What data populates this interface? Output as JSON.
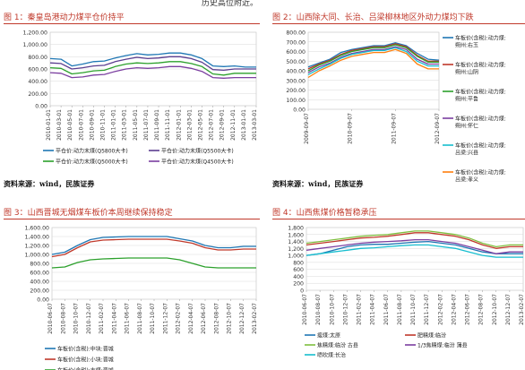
{
  "header_fragment": "历史高位附近。",
  "sources": {
    "left": "资料来源：wind，民族证券",
    "right": "资料来源：wind，民族证券"
  },
  "colors": {
    "title": "#c0392b",
    "rule": "#c0392b"
  },
  "chart_data": [
    {
      "type": "line",
      "title": "图 1：秦皇岛港动力煤平仓价持平",
      "x_tick_labels": [
        "2010-01-01",
        "2010-03-01",
        "2010-05-01",
        "2010-07-01",
        "2010-09-01",
        "2010-11-01",
        "2011-01-01",
        "2011-03-01",
        "2011-05-01",
        "2011-07-01",
        "2011-09-01",
        "2011-11-01",
        "2012-01-01",
        "2012-03-01",
        "2012-05-01",
        "2012-07-01",
        "2012-09-01",
        "2012-11-01",
        "2013-01-01",
        "2013-03-01"
      ],
      "y_tick_labels": [
        "0.00",
        "200.00",
        "400.00",
        "600.00",
        "800.00",
        "1,000.00",
        "1,200.00"
      ],
      "ylim": [
        0,
        1200
      ],
      "legend": "bottom",
      "series": [
        {
          "name": "平仓价:动力末煤(Q5800大卡)",
          "color": "#1f77b4",
          "values": [
            770,
            760,
            650,
            680,
            720,
            730,
            780,
            820,
            850,
            830,
            840,
            860,
            860,
            830,
            770,
            650,
            640,
            650,
            630,
            630
          ]
        },
        {
          "name": "平仓价:动力末煤(Q5500大卡)",
          "color": "#5b3d8f",
          "values": [
            700,
            690,
            600,
            620,
            650,
            660,
            720,
            760,
            790,
            770,
            780,
            800,
            800,
            770,
            710,
            590,
            580,
            600,
            600,
            600
          ]
        },
        {
          "name": "平仓价:动力末煤(Q5000大卡)",
          "color": "#2ca02c",
          "values": [
            620,
            610,
            520,
            540,
            570,
            580,
            640,
            680,
            700,
            690,
            700,
            720,
            720,
            690,
            640,
            520,
            500,
            530,
            530,
            530
          ]
        },
        {
          "name": "平仓价:动力末煤(Q4500大卡)",
          "color": "#7b3fa0",
          "values": [
            540,
            530,
            460,
            470,
            500,
            510,
            560,
            600,
            620,
            610,
            620,
            640,
            640,
            610,
            560,
            460,
            450,
            460,
            460,
            460
          ]
        }
      ]
    },
    {
      "type": "line",
      "title": "图 2：山西除大同、长治、吕梁柳林地区外动力煤均下跌",
      "x_tick_labels": [
        "2009-09-07",
        "2010-09-07",
        "2011-09-07",
        "2012-09-07"
      ],
      "y_tick_labels": [
        "0.00",
        "100.00",
        "200.00",
        "300.00",
        "400.00",
        "500.00",
        "600.00",
        "700.00",
        "800.00"
      ],
      "ylim": [
        0,
        800
      ],
      "legend": "right",
      "series": [
        {
          "name": "车板价(含税):动力煤:朔州:右玉",
          "color": "#1f77b4",
          "values": [
            440,
            480,
            520,
            590,
            620,
            640,
            660,
            660,
            690,
            660,
            580,
            520,
            510
          ]
        },
        {
          "name": "车板价(含税):动力煤:朔州:山阴",
          "color": "#c0392b",
          "values": [
            420,
            470,
            510,
            570,
            610,
            630,
            650,
            650,
            680,
            650,
            560,
            500,
            500
          ]
        },
        {
          "name": "车板价(含税):动力煤:朔州:平鲁",
          "color": "#2ca02c",
          "values": [
            400,
            460,
            500,
            560,
            600,
            620,
            640,
            640,
            670,
            640,
            550,
            490,
            490
          ]
        },
        {
          "name": "车板价(含税):动力煤:朔州:怀仁",
          "color": "#7b3fa0",
          "values": [
            380,
            440,
            480,
            540,
            580,
            600,
            620,
            620,
            650,
            620,
            520,
            470,
            470
          ]
        },
        {
          "name": "车板价(含税):动力煤:吕梁:兴县",
          "color": "#17becf",
          "values": [
            360,
            420,
            470,
            530,
            570,
            590,
            610,
            610,
            640,
            600,
            500,
            450,
            450
          ]
        },
        {
          "name": "车板价(含税):动力煤:吕梁:孝义",
          "color": "#ff7f0e",
          "values": [
            330,
            400,
            450,
            510,
            550,
            570,
            590,
            590,
            620,
            580,
            470,
            420,
            420
          ]
        }
      ]
    },
    {
      "type": "line",
      "title": "图 3：山西晋城无烟煤车板价本周继续保持稳定",
      "x_tick_labels": [
        "2010-06-07",
        "2010-08-07",
        "2010-10-07",
        "2010-12-07",
        "2011-02-07",
        "2011-04-07",
        "2011-06-07",
        "2011-08-07",
        "2011-10-07",
        "2011-12-07",
        "2012-02-07",
        "2012-04-07",
        "2012-06-07",
        "2012-08-07",
        "2012-10-07",
        "2012-12-07",
        "2013-02-07"
      ],
      "y_tick_labels": [
        "0.00",
        "200.00",
        "400.00",
        "600.00",
        "800.00",
        "1,000.00",
        "1,200.00",
        "1,400.00",
        "1,600.00"
      ],
      "ylim": [
        0,
        1600
      ],
      "legend": "bottom",
      "series": [
        {
          "name": "车板价(含税):中块:晋城",
          "color": "#1f77b4",
          "values": [
            1000,
            1050,
            1200,
            1330,
            1380,
            1390,
            1400,
            1400,
            1400,
            1400,
            1350,
            1300,
            1200,
            1150,
            1150,
            1180,
            1180
          ]
        },
        {
          "name": "车板价(含税):小块:晋城",
          "color": "#c0392b",
          "values": [
            950,
            1000,
            1150,
            1280,
            1320,
            1330,
            1340,
            1340,
            1340,
            1340,
            1300,
            1250,
            1150,
            1100,
            1100,
            1120,
            1120
          ]
        },
        {
          "name": "车板价(含税):末煤:晋城",
          "color": "#2ca02c",
          "values": [
            700,
            720,
            820,
            880,
            900,
            910,
            920,
            920,
            920,
            920,
            880,
            800,
            720,
            700,
            700,
            700,
            700
          ]
        }
      ]
    },
    {
      "type": "line",
      "title": "图 4：山西焦煤价格暂稳承压",
      "x_tick_labels": [
        "2010-06-07",
        "2010-08-07",
        "2010-10-07",
        "2010-12-07",
        "2011-02-07",
        "2011-04-07",
        "2011-06-07",
        "2011-08-07",
        "2011-10-07",
        "2011-12-07",
        "2012-02-07",
        "2012-04-07",
        "2012-06-07",
        "2012-08-07",
        "2012-10-07",
        "2012-12-07",
        "2013-02-07"
      ],
      "y_tick_labels": [
        "0",
        "200",
        "400",
        "600",
        "800",
        "1,000",
        "1,200",
        "1,400",
        "1,600",
        "1,800"
      ],
      "ylim": [
        0,
        1800
      ],
      "legend": "bottom",
      "series": [
        {
          "name": "瘦煤:太原",
          "color": "#1f77b4",
          "values": [
            1000,
            1050,
            1150,
            1250,
            1300,
            1320,
            1320,
            1350,
            1380,
            1400,
            1350,
            1300,
            1200,
            1100,
            1050,
            1050,
            1050
          ]
        },
        {
          "name": "肥精煤:临汾",
          "color": "#c0392b",
          "values": [
            1300,
            1350,
            1400,
            1450,
            1500,
            1520,
            1550,
            1600,
            1650,
            1650,
            1600,
            1550,
            1450,
            1300,
            1200,
            1250,
            1250
          ]
        },
        {
          "name": "焦精煤:临汾 古县",
          "color": "#7fbf3f",
          "values": [
            1350,
            1400,
            1450,
            1500,
            1550,
            1580,
            1600,
            1650,
            1700,
            1700,
            1650,
            1600,
            1500,
            1350,
            1250,
            1300,
            1300
          ]
        },
        {
          "name": "1/3焦精煤:临汾 蒲县",
          "color": "#7b3fa0",
          "values": [
            1150,
            1200,
            1250,
            1300,
            1350,
            1380,
            1400,
            1420,
            1450,
            1450,
            1400,
            1350,
            1250,
            1150,
            1050,
            1100,
            1100
          ]
        },
        {
          "name": "喷吹煤:长治",
          "color": "#17becf",
          "values": [
            1000,
            1050,
            1100,
            1150,
            1200,
            1220,
            1250,
            1280,
            1300,
            1300,
            1250,
            1200,
            1100,
            1000,
            950,
            950,
            950
          ]
        }
      ]
    }
  ]
}
